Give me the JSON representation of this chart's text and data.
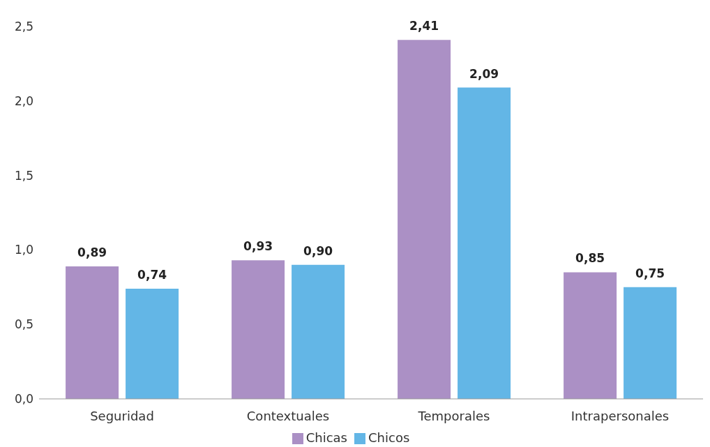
{
  "chart_data": {
    "type": "bar",
    "categories": [
      "Seguridad",
      "Contextuales",
      "Temporales",
      "Intrapersonales"
    ],
    "series": [
      {
        "name": "Chicas",
        "color": "#ab90c5",
        "values": [
          0.89,
          0.93,
          2.41,
          0.85
        ],
        "value_labels": [
          "0,89",
          "0,93",
          "2,41",
          "0,85"
        ]
      },
      {
        "name": "Chicos",
        "color": "#63b6e6",
        "values": [
          0.74,
          0.9,
          2.09,
          0.75
        ],
        "value_labels": [
          "0,74",
          "0,90",
          "2,09",
          "0,75"
        ]
      }
    ],
    "ylim": [
      0,
      2.5
    ],
    "yticks": [
      {
        "value": 0,
        "label": "0,0"
      },
      {
        "value": 0.5,
        "label": "0,5"
      },
      {
        "value": 1,
        "label": "1,0"
      },
      {
        "value": 1.5,
        "label": "1,5"
      },
      {
        "value": 2,
        "label": "2,0"
      },
      {
        "value": 2.5,
        "label": "2,5"
      }
    ],
    "grid": false,
    "legend": "bottom"
  }
}
